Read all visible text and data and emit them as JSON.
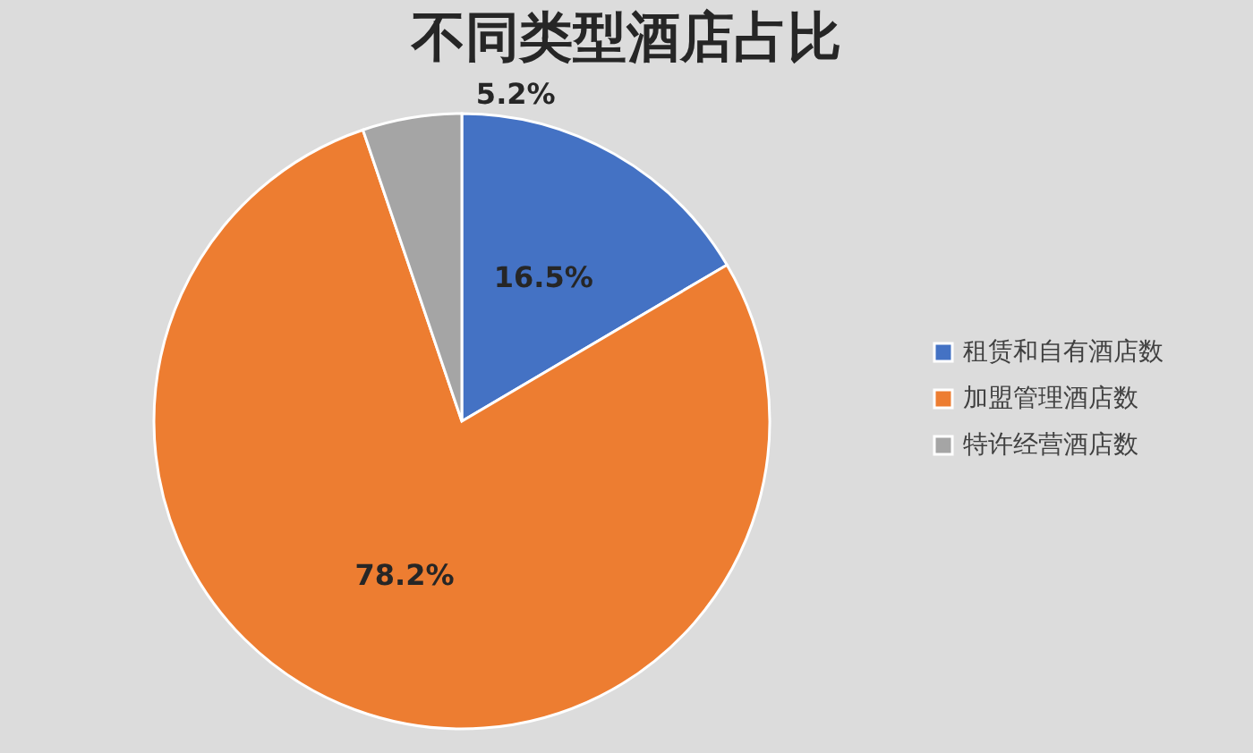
{
  "chart_data": {
    "type": "pie",
    "title": "不同类型酒店占比",
    "categories": [
      "租赁和自有酒店数",
      "加盟管理酒店数",
      "特许经营酒店数"
    ],
    "values": [
      16.5,
      78.2,
      5.2
    ],
    "colors": [
      "#4472c4",
      "#ed7d31",
      "#a5a5a5"
    ],
    "value_labels": [
      "16.5%",
      "78.2%",
      "5.2%"
    ],
    "legend": "right"
  }
}
